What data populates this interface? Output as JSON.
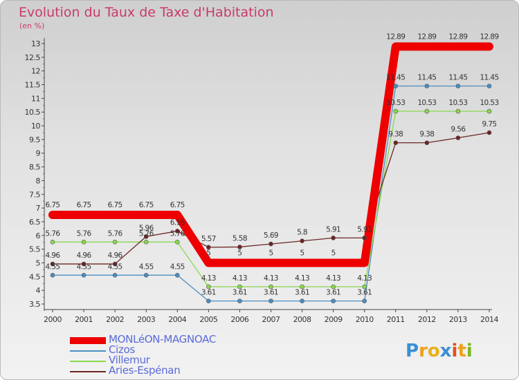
{
  "title": "Evolution du Taux de Taxe d'Habitation",
  "subtitle": "(en %)",
  "logo": {
    "letters": [
      "P",
      "r",
      "o",
      "x",
      "i",
      "t",
      "i"
    ],
    "colors": [
      "#3b8fd4",
      "#f0a01c",
      "#e8b01a",
      "#3b8fd4",
      "#e0501c",
      "#f0a01c",
      "#7ab822"
    ]
  },
  "chart_data": {
    "type": "line",
    "x": [
      "2000",
      "2001",
      "2002",
      "2003",
      "2004",
      "2005",
      "2006",
      "2007",
      "2008",
      "2009",
      "2010",
      "2011",
      "2012",
      "2013",
      "2014"
    ],
    "ylim": [
      3.5,
      13
    ],
    "yticks": [
      "3.5",
      "4",
      "4.5",
      "5",
      "5.5",
      "6",
      "6.5",
      "7",
      "7.5",
      "8",
      "8.5",
      "9",
      "9.5",
      "10",
      "10.5",
      "11",
      "11.5",
      "12",
      "12.5",
      "13"
    ],
    "grid": false,
    "legend_position": "bottom-left",
    "series": [
      {
        "name": "MONLéON-MAGNOAC",
        "color": "#ee0000",
        "values": [
          6.75,
          6.75,
          6.75,
          6.75,
          6.75,
          5,
          5,
          5,
          5,
          5,
          5,
          12.89,
          12.89,
          12.89,
          12.89
        ],
        "labels": [
          "6.75",
          "6.75",
          "6.75",
          "6.75",
          "6.75",
          "5",
          "5",
          "5",
          "5",
          "5",
          "",
          "12.89",
          "12.89",
          "12.89",
          "12.89"
        ]
      },
      {
        "name": "Cizos",
        "color": "#4a8ec2",
        "values": [
          4.55,
          4.55,
          4.55,
          4.55,
          4.55,
          3.61,
          3.61,
          3.61,
          3.61,
          3.61,
          3.61,
          11.45,
          11.45,
          11.45,
          11.45
        ],
        "labels": [
          "4.55",
          "4.55",
          "4.55",
          "4.55",
          "4.55",
          "3.61",
          "3.61",
          "3.61",
          "3.61",
          "3.61",
          "3.61",
          "11.45",
          "11.45",
          "11.45",
          "11.45"
        ]
      },
      {
        "name": "Villemur",
        "color": "#88d84a",
        "values": [
          5.76,
          5.76,
          5.76,
          5.76,
          5.76,
          4.13,
          4.13,
          4.13,
          4.13,
          4.13,
          4.13,
          10.53,
          10.53,
          10.53,
          10.53
        ],
        "labels": [
          "5.76",
          "5.76",
          "5.76",
          "5.76",
          "5.76",
          "4.13",
          "4.13",
          "4.13",
          "4.13",
          "4.13",
          "4.13",
          "10.53",
          "10.53",
          "10.53",
          "10.53"
        ]
      },
      {
        "name": "Aries-Espénan",
        "color": "#6e2424",
        "values": [
          4.96,
          4.96,
          4.96,
          5.96,
          6.16,
          5.57,
          5.58,
          5.69,
          5.8,
          5.91,
          5.91,
          9.38,
          9.38,
          9.56,
          9.75
        ],
        "labels": [
          "4.96",
          "4.96",
          "4.96",
          "5.96",
          "6.16",
          "5.57",
          "5.58",
          "5.69",
          "5.8",
          "5.91",
          "5.91",
          "9.38",
          "9.38",
          "9.56",
          "9.75"
        ]
      }
    ]
  }
}
